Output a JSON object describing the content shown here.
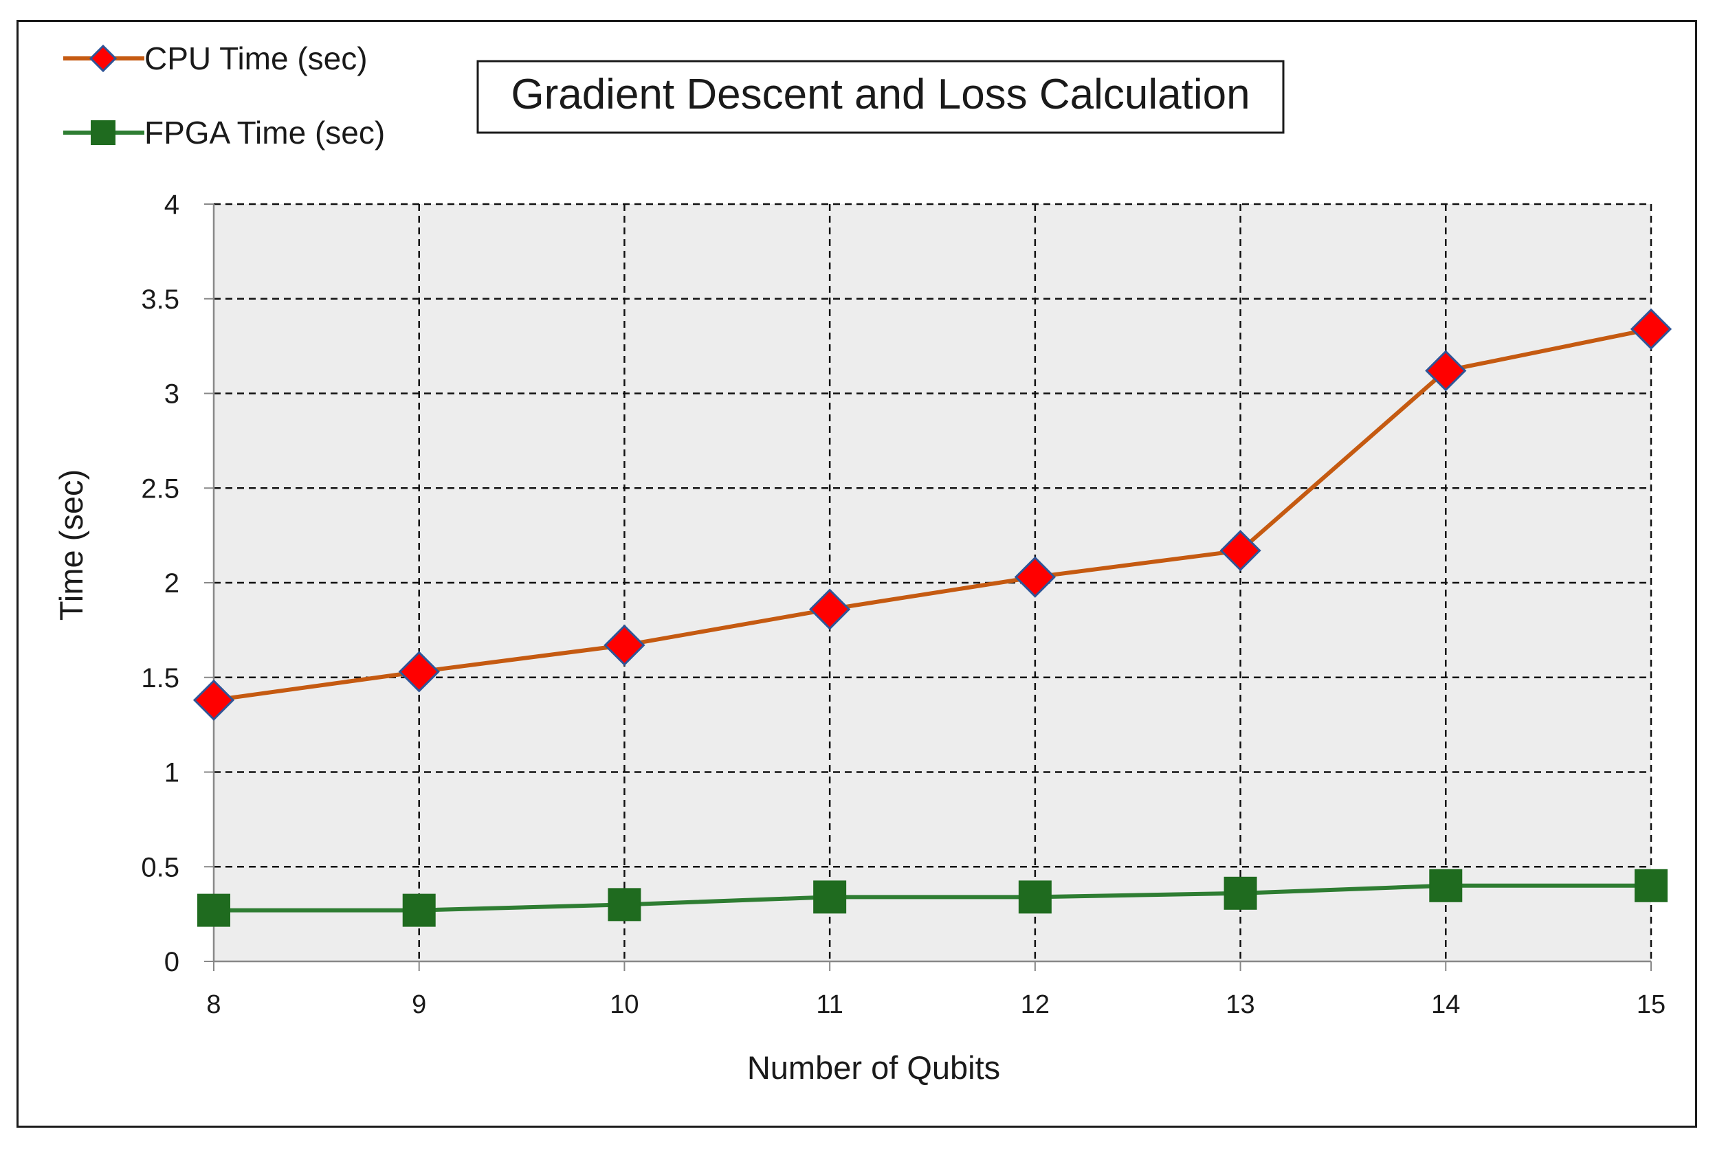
{
  "chart_data": {
    "type": "line",
    "title": "Gradient Descent and Loss Calculation",
    "xlabel": "Number of Qubits",
    "ylabel": "Time (sec)",
    "categories": [
      "8",
      "9",
      "10",
      "11",
      "12",
      "13",
      "14",
      "15"
    ],
    "x": [
      8,
      9,
      10,
      11,
      12,
      13,
      14,
      15
    ],
    "xlim": [
      8,
      15
    ],
    "ylim": [
      0,
      4
    ],
    "yticks": [
      0,
      0.5,
      1,
      1.5,
      2,
      2.5,
      3,
      3.5,
      4
    ],
    "ytick_labels": [
      "0",
      "0.5",
      "1",
      "1.5",
      "2",
      "2.5",
      "3",
      "3.5",
      "4"
    ],
    "grid": true,
    "grid_style": "dashed",
    "legend_position": "top-left",
    "series": [
      {
        "name": "CPU Time (sec)",
        "values": [
          1.38,
          1.53,
          1.67,
          1.86,
          2.03,
          2.17,
          3.12,
          3.34
        ],
        "line_color": "#C55A11",
        "marker": "diamond",
        "marker_fill": "#FF0000",
        "marker_edge": "#2F5597"
      },
      {
        "name": "FPGA Time (sec)",
        "values": [
          0.27,
          0.27,
          0.3,
          0.34,
          0.34,
          0.36,
          0.4,
          0.4
        ],
        "line_color": "#2E7D32",
        "marker": "square",
        "marker_fill": "#1F6B1F",
        "marker_edge": "#1F6B1F"
      }
    ],
    "plot_background": "#EDEDED"
  }
}
